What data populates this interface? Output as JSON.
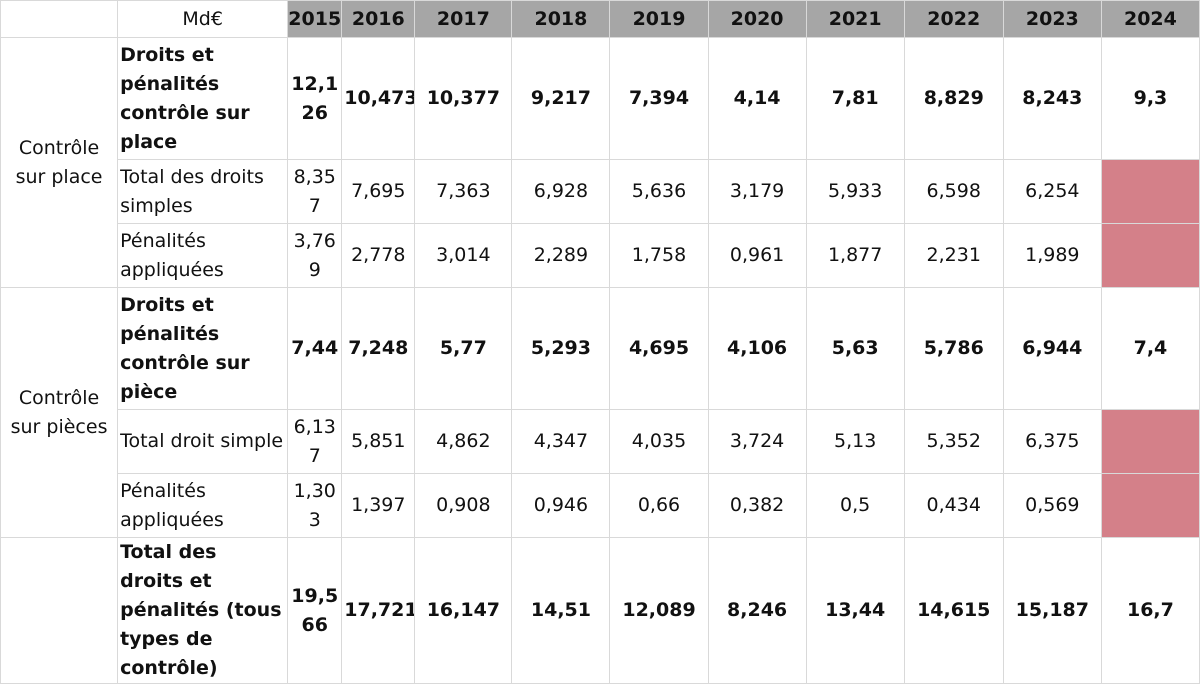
{
  "header": {
    "unit": "Md€",
    "years": [
      "2015",
      "2016",
      "2017",
      "2018",
      "2019",
      "2020",
      "2021",
      "2022",
      "2023",
      "2024"
    ]
  },
  "groups": [
    {
      "label": "Contrôle sur place",
      "rows": [
        {
          "label": "Droits et pénalités contrôle sur place",
          "bold": true,
          "values": [
            "12,126",
            "10,473",
            "10,377",
            "9,217",
            "7,394",
            "4,14",
            "7,81",
            "8,829",
            "8,243",
            "9,3"
          ]
        },
        {
          "label": "Total des droits simples",
          "bold": false,
          "values": [
            "8,357",
            "7,695",
            "7,363",
            "6,928",
            "5,636",
            "3,179",
            "5,933",
            "6,598",
            "6,254",
            ""
          ]
        },
        {
          "label": "Pénalités appliquées",
          "bold": false,
          "values": [
            "3,769",
            "2,778",
            "3,014",
            "2,289",
            "1,758",
            "0,961",
            "1,877",
            "2,231",
            "1,989",
            ""
          ]
        }
      ]
    },
    {
      "label": "Contrôle sur pièces",
      "rows": [
        {
          "label": "Droits et pénalités contrôle sur pièce",
          "bold": true,
          "values": [
            "7,44",
            "7,248",
            "5,77",
            "5,293",
            "4,695",
            "4,106",
            "5,63",
            "5,786",
            "6,944",
            "7,4"
          ]
        },
        {
          "label": "Total droit simple",
          "bold": false,
          "values": [
            "6,137",
            "5,851",
            "4,862",
            "4,347",
            "4,035",
            "3,724",
            "5,13",
            "5,352",
            "6,375",
            ""
          ]
        },
        {
          "label": "Pénalités appliquées",
          "bold": false,
          "values": [
            "1,303",
            "1,397",
            "0,908",
            "0,946",
            "0,66",
            "0,382",
            "0,5",
            "0,434",
            "0,569",
            ""
          ]
        }
      ]
    }
  ],
  "total": {
    "label": "Total des droits et pénalités (tous types de contrôle)",
    "values": [
      "19,566",
      "17,721",
      "16,147",
      "14,51",
      "12,089",
      "8,246",
      "13,44",
      "14,615",
      "15,187",
      "16,7"
    ]
  },
  "colors": {
    "header_bg": "#a6a6a6",
    "missing_cell_bg": "#d48089",
    "grid": "#d9d9d9"
  }
}
